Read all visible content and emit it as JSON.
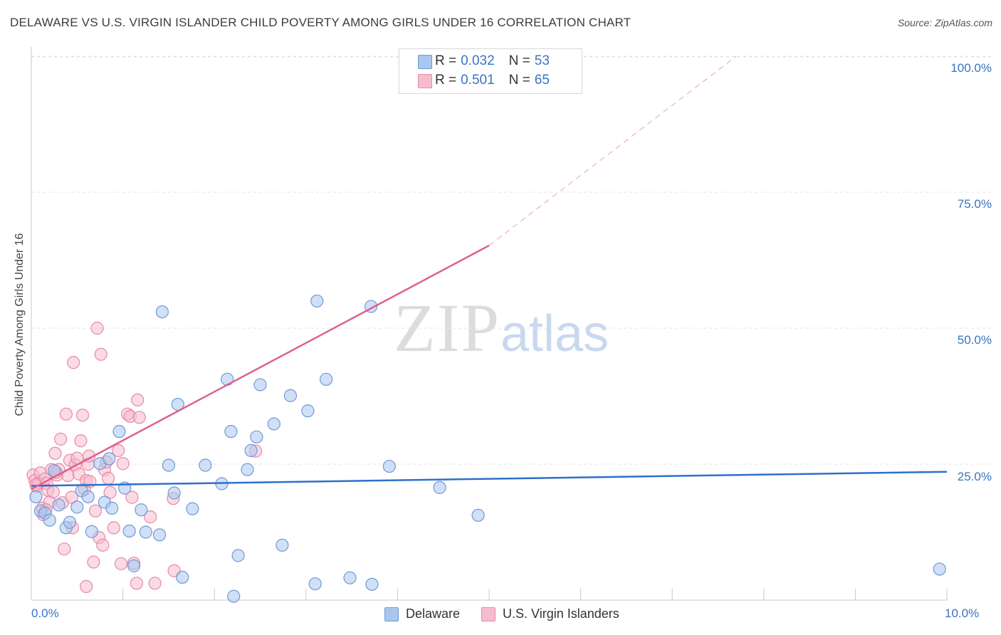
{
  "title": "DELAWARE VS U.S. VIRGIN ISLANDER CHILD POVERTY AMONG GIRLS UNDER 16 CORRELATION CHART",
  "source": "Source: ZipAtlas.com",
  "watermark": {
    "zip": "ZIP",
    "atlas": "atlas"
  },
  "legend_top": {
    "rows": [
      {
        "r_label": "R =",
        "r_value": "0.032",
        "n_label": "N =",
        "n_value": "53"
      },
      {
        "r_label": "R =",
        "r_value": "0.501",
        "n_label": "N =",
        "n_value": "65"
      }
    ]
  },
  "legend_bottom": [
    "Delaware",
    "U.S. Virgin Islanders"
  ],
  "colors": {
    "delaware_fill": "#a9c6ee",
    "delaware_stroke": "#6f9ad6",
    "delaware_line": "#2e6fcc",
    "usvi_fill": "#f5bccd",
    "usvi_stroke": "#e889a8",
    "usvi_line": "#e0608c",
    "tick_text": "#3b73c4",
    "grid": "#e3e3e3"
  },
  "chart_data": {
    "type": "scatter",
    "title": "DELAWARE VS U.S. VIRGIN ISLANDER CHILD POVERTY AMONG GIRLS UNDER 16 CORRELATION CHART",
    "xlabel": "",
    "ylabel": "Child Poverty Among Girls Under 16",
    "xlim": [
      0,
      10
    ],
    "ylim": [
      0,
      100
    ],
    "x_tick_labels": [
      "0.0%",
      "10.0%"
    ],
    "y_tick_labels": [
      "25.0%",
      "50.0%",
      "75.0%",
      "100.0%"
    ],
    "y_ticks": [
      25,
      50,
      75,
      100
    ],
    "grid": true,
    "legend_position": "top-center",
    "series": [
      {
        "name": "Delaware",
        "stats": {
          "R": 0.032,
          "N": 53
        },
        "trend": {
          "x": [
            0,
            10
          ],
          "y": [
            21.0,
            23.6
          ],
          "style": "solid"
        },
        "points": [
          [
            0.05,
            19.0
          ],
          [
            0.1,
            16.4
          ],
          [
            0.15,
            16.0
          ],
          [
            0.2,
            14.7
          ],
          [
            0.25,
            23.8
          ],
          [
            0.3,
            17.5
          ],
          [
            0.38,
            13.3
          ],
          [
            0.42,
            14.3
          ],
          [
            0.5,
            17.1
          ],
          [
            0.55,
            20.1
          ],
          [
            0.62,
            19.0
          ],
          [
            0.66,
            12.6
          ],
          [
            0.75,
            25.1
          ],
          [
            0.8,
            18.0
          ],
          [
            0.85,
            26.0
          ],
          [
            0.88,
            16.9
          ],
          [
            0.96,
            31.0
          ],
          [
            1.02,
            20.6
          ],
          [
            1.07,
            12.7
          ],
          [
            1.12,
            6.3
          ],
          [
            1.2,
            16.6
          ],
          [
            1.25,
            12.5
          ],
          [
            1.4,
            12.0
          ],
          [
            1.43,
            53.0
          ],
          [
            1.5,
            24.8
          ],
          [
            1.56,
            19.7
          ],
          [
            1.6,
            36.0
          ],
          [
            1.65,
            4.2
          ],
          [
            1.76,
            16.8
          ],
          [
            1.9,
            24.8
          ],
          [
            2.08,
            21.4
          ],
          [
            2.14,
            40.6
          ],
          [
            2.18,
            31.0
          ],
          [
            2.21,
            0.7
          ],
          [
            2.26,
            8.2
          ],
          [
            2.36,
            24.0
          ],
          [
            2.4,
            27.5
          ],
          [
            2.46,
            30.0
          ],
          [
            2.5,
            39.6
          ],
          [
            2.65,
            32.4
          ],
          [
            2.74,
            10.1
          ],
          [
            2.83,
            37.6
          ],
          [
            3.02,
            34.8
          ],
          [
            3.1,
            3.0
          ],
          [
            3.12,
            55.0
          ],
          [
            3.22,
            40.6
          ],
          [
            3.48,
            4.1
          ],
          [
            3.71,
            54.0
          ],
          [
            3.72,
            2.9
          ],
          [
            3.91,
            24.6
          ],
          [
            4.46,
            20.7
          ],
          [
            4.88,
            15.6
          ],
          [
            9.92,
            5.7
          ]
        ]
      },
      {
        "name": "U.S. Virgin Islanders",
        "stats": {
          "R": 0.501,
          "N": 65
        },
        "trend": {
          "x": [
            0,
            5.0
          ],
          "y": [
            20.4,
            65.2
          ],
          "style": "solid",
          "dashed_extension_to": [
            7.7,
            100
          ]
        },
        "points": [
          [
            0.02,
            23.0
          ],
          [
            0.04,
            22.0
          ],
          [
            0.06,
            20.9
          ],
          [
            0.08,
            21.6
          ],
          [
            0.1,
            23.4
          ],
          [
            0.12,
            16.9
          ],
          [
            0.13,
            15.7
          ],
          [
            0.15,
            22.3
          ],
          [
            0.17,
            21.5
          ],
          [
            0.18,
            20.2
          ],
          [
            0.2,
            18.0
          ],
          [
            0.22,
            24.0
          ],
          [
            0.24,
            19.9
          ],
          [
            0.26,
            27.0
          ],
          [
            0.28,
            23.0
          ],
          [
            0.3,
            24.0
          ],
          [
            0.32,
            29.6
          ],
          [
            0.34,
            17.9
          ],
          [
            0.36,
            9.4
          ],
          [
            0.38,
            34.2
          ],
          [
            0.4,
            22.9
          ],
          [
            0.42,
            25.7
          ],
          [
            0.44,
            18.9
          ],
          [
            0.45,
            13.3
          ],
          [
            0.46,
            43.7
          ],
          [
            0.48,
            24.9
          ],
          [
            0.5,
            26.1
          ],
          [
            0.52,
            23.2
          ],
          [
            0.54,
            29.3
          ],
          [
            0.56,
            34.0
          ],
          [
            0.58,
            20.4
          ],
          [
            0.6,
            22.0
          ],
          [
            0.62,
            25.0
          ],
          [
            0.63,
            26.5
          ],
          [
            0.64,
            21.8
          ],
          [
            0.68,
            7.0
          ],
          [
            0.6,
            2.5
          ],
          [
            0.7,
            16.4
          ],
          [
            0.72,
            50.0
          ],
          [
            0.74,
            11.5
          ],
          [
            0.76,
            45.2
          ],
          [
            0.78,
            10.1
          ],
          [
            0.8,
            24.0
          ],
          [
            0.82,
            25.4
          ],
          [
            0.84,
            22.4
          ],
          [
            0.86,
            19.8
          ],
          [
            0.9,
            13.3
          ],
          [
            0.95,
            27.5
          ],
          [
            0.98,
            6.7
          ],
          [
            1.0,
            25.1
          ],
          [
            1.05,
            34.2
          ],
          [
            1.08,
            33.8
          ],
          [
            1.1,
            18.9
          ],
          [
            1.12,
            6.8
          ],
          [
            1.15,
            3.1
          ],
          [
            1.16,
            36.8
          ],
          [
            1.18,
            33.6
          ],
          [
            1.3,
            15.3
          ],
          [
            1.35,
            3.1
          ],
          [
            1.55,
            18.7
          ],
          [
            1.56,
            5.4
          ],
          [
            2.45,
            27.4
          ],
          [
            0.27,
            23.5
          ],
          [
            0.16,
            16.6
          ],
          [
            0.05,
            21.2
          ]
        ]
      }
    ]
  }
}
